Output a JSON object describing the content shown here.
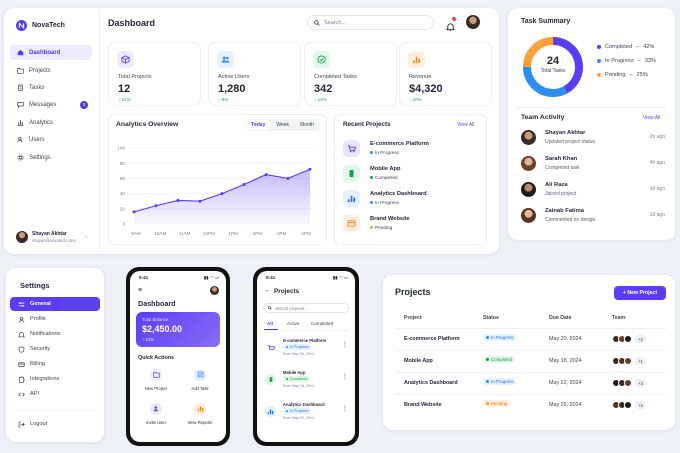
{
  "brand": {
    "name": "NovaTech"
  },
  "sidebar": {
    "items": [
      {
        "label": "Dashboard"
      },
      {
        "label": "Projects"
      },
      {
        "label": "Tasks"
      },
      {
        "label": "Messages",
        "badge": "3"
      },
      {
        "label": "Analytics"
      },
      {
        "label": "Users"
      },
      {
        "label": "Settings"
      }
    ],
    "user": {
      "name": "Shayan Akhtar",
      "email": "shayan@novatech.com"
    }
  },
  "header": {
    "title": "Dashboard",
    "search_placeholder": "Search..."
  },
  "kpis": [
    {
      "label": "Total Projects",
      "value": "12",
      "change": "12%"
    },
    {
      "label": "Active Users",
      "value": "1,280",
      "change": "8%"
    },
    {
      "label": "Completed Tasks",
      "value": "342",
      "change": "14%"
    },
    {
      "label": "Revenue",
      "value": "$4,320",
      "change": "10%"
    }
  ],
  "overview": {
    "title": "Analytics Overview",
    "tabs": [
      "Today",
      "Week",
      "Month"
    ],
    "active_tab": "Today"
  },
  "chart_data": {
    "type": "area",
    "title": "Analytics Overview",
    "categories": [
      "9AM",
      "10AM",
      "11AM",
      "12PM",
      "1PM",
      "2PM",
      "3PM",
      "4PM"
    ],
    "values": [
      16,
      24,
      31,
      30,
      40,
      52,
      65,
      60,
      72
    ],
    "x": [
      "",
      "",
      "",
      "",
      "",
      "",
      "",
      "",
      ""
    ],
    "yticks": [
      0,
      20,
      40,
      60,
      80,
      100
    ],
    "ylim": [
      0,
      100
    ],
    "grid": true,
    "color": "#5b3df5"
  },
  "recent": {
    "title": "Recent Projects",
    "view_all": "View All",
    "items": [
      {
        "name": "E-commerce Platform",
        "status": "In Progress"
      },
      {
        "name": "Mobile App",
        "status": "Completed"
      },
      {
        "name": "Analytics Dashboard",
        "status": "In Progress"
      },
      {
        "name": "Brand Website",
        "status": "Pending"
      }
    ]
  },
  "task_summary": {
    "title": "Task Summary",
    "total": "24",
    "total_label": "Total Tasks",
    "legend": [
      {
        "label": "Completed",
        "pct": "42%",
        "value": 42,
        "color": "#5b3df5"
      },
      {
        "label": "In Progress",
        "pct": "33%",
        "value": 33,
        "color": "#2f8cf3"
      },
      {
        "label": "Pending",
        "pct": "25%",
        "value": 25,
        "color": "#f6a13a"
      }
    ]
  },
  "team": {
    "title": "Team Activity",
    "view_all": "View All",
    "items": [
      {
        "name": "Shayan Akhtar",
        "desc": "Updated project status",
        "time": "2h ago"
      },
      {
        "name": "Sarah Khan",
        "desc": "Completed task",
        "time": "4h ago"
      },
      {
        "name": "Ali Raza",
        "desc": "Joined project",
        "time": "1d ago"
      },
      {
        "name": "Zainab Fatima",
        "desc": "Commented on design",
        "time": "2d ago"
      }
    ]
  },
  "settings": {
    "title": "Settings",
    "items": [
      "General",
      "Profile",
      "Notifications",
      "Security",
      "Billing",
      "Integrations",
      "API"
    ],
    "logout": "Logout"
  },
  "phone1": {
    "time": "9:41",
    "title": "Dashboard",
    "balance_label": "Total Balance",
    "balance": "$2,450.00",
    "balance_change": "12%",
    "quick": "Quick Actions",
    "actions": [
      "New Project",
      "Add Task",
      "Invite User",
      "View Reports"
    ]
  },
  "phone2": {
    "time": "9:41",
    "title": "Projects",
    "search_placeholder": "Search projects...",
    "tabs": [
      "All",
      "Active",
      "Completed"
    ],
    "items": [
      {
        "name": "E-commerce Platform",
        "status": "In Progress",
        "due": "Due: May 20, 2024"
      },
      {
        "name": "Mobile App",
        "status": "Completed",
        "due": "Due: May 18, 2024"
      },
      {
        "name": "Analytics Dashboard",
        "status": "In Progress",
        "due": "Due: May 22, 2024"
      }
    ]
  },
  "projects_table": {
    "title": "Projects",
    "new_button": "+ New Project",
    "headers": [
      "Project",
      "Status",
      "Due Date",
      "Team"
    ],
    "rows": [
      {
        "project": "E-commerce Platform",
        "status": "In Progress",
        "due": "May 20, 2024",
        "more": "+2"
      },
      {
        "project": "Mobile App",
        "status": "Completed",
        "due": "May 18, 2024",
        "more": "+1"
      },
      {
        "project": "Analytics Dashboard",
        "status": "In Progress",
        "due": "May 22, 2024",
        "more": "+3"
      },
      {
        "project": "Brand Website",
        "status": "Pending",
        "due": "May 25, 2024",
        "more": "+2"
      }
    ]
  }
}
